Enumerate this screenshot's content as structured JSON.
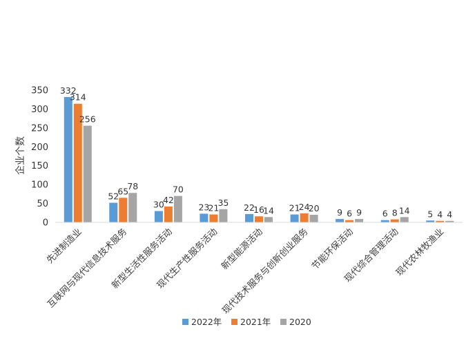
{
  "chart_data": {
    "type": "bar",
    "ylabel": "企业个数",
    "xlabel": "",
    "ylim": [
      0,
      350
    ],
    "yticks": [
      0,
      50,
      100,
      150,
      200,
      250,
      300,
      350
    ],
    "grid": false,
    "legend_position": "bottom",
    "categories": [
      "先进制造业",
      "互联网与现代信息技术服务",
      "新型生活性服务活动",
      "现代生产性服务活动",
      "新型能源活动",
      "现代技术服务与创新创业服务",
      "节能环保活动",
      "现代综合管理活动",
      "现代农林牧渔业"
    ],
    "series": [
      {
        "name": "2022年",
        "color": "#5B9BD5",
        "values": [
          332,
          52,
          30,
          23,
          22,
          21,
          9,
          6,
          5
        ]
      },
      {
        "name": "2021年",
        "color": "#ED7D31",
        "values": [
          314,
          65,
          42,
          21,
          16,
          24,
          6,
          8,
          4
        ]
      },
      {
        "name": "2020",
        "color": "#A5A5A5",
        "values": [
          256,
          78,
          70,
          35,
          14,
          20,
          9,
          14,
          4
        ]
      }
    ]
  }
}
